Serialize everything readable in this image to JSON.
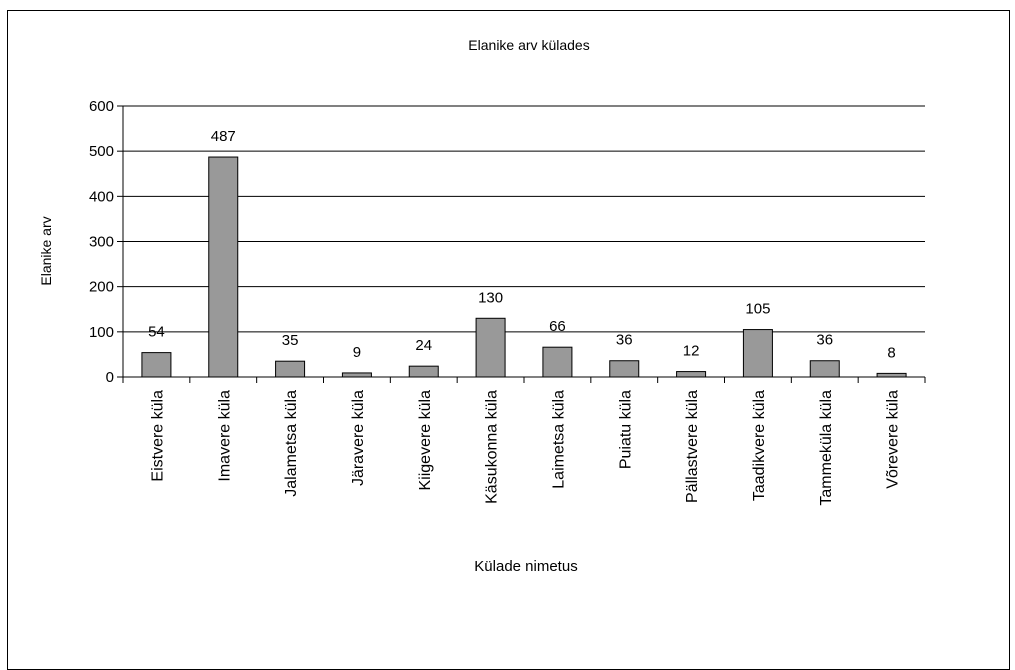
{
  "chart_data": {
    "type": "bar",
    "title": "Elanike arv külades",
    "xlabel": "Külade nimetus",
    "ylabel": "Elanike arv",
    "categories": [
      "Eistvere küla",
      "Imavere küla",
      "Jalametsa küla",
      "Järavere küla",
      "Kiigevere küla",
      "Käsukonna küla",
      "Laimetsa küla",
      "Puiatu küla",
      "Pällastvere küla",
      "Taadikvere küla",
      "Tammeküla küla",
      "Võrevere küla"
    ],
    "values": [
      54,
      487,
      35,
      9,
      24,
      130,
      66,
      36,
      12,
      105,
      36,
      8
    ],
    "ylim": [
      0,
      600
    ],
    "yticks": [
      0,
      100,
      200,
      300,
      400,
      500,
      600
    ],
    "grid": true,
    "legend": "none",
    "colors": {
      "bar": "#999999",
      "bar_stroke": "#000000",
      "grid": "#000000"
    }
  }
}
